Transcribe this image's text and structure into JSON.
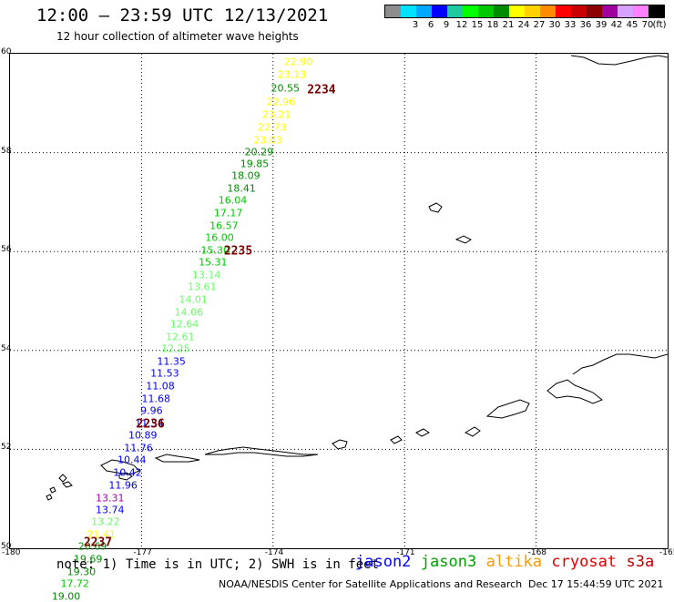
{
  "header": {
    "title": "12:00 – 23:59 UTC 12/13/2021",
    "subtitle": "12 hour collection of altimeter wave heights"
  },
  "legend": {
    "unit": "(ft)",
    "bins": [
      {
        "label": "",
        "color": "#8c8c8c"
      },
      {
        "label": "3",
        "color": "#00e0ff"
      },
      {
        "label": "6",
        "color": "#00a8ff"
      },
      {
        "label": "9",
        "color": "#0000ff"
      },
      {
        "label": "12",
        "color": "#1ec8a0"
      },
      {
        "label": "15",
        "color": "#00ff00"
      },
      {
        "label": "18",
        "color": "#00c800"
      },
      {
        "label": "21",
        "color": "#008c00"
      },
      {
        "label": "24",
        "color": "#ffff00"
      },
      {
        "label": "27",
        "color": "#ffd200"
      },
      {
        "label": "30",
        "color": "#ff8c00"
      },
      {
        "label": "33",
        "color": "#ff0000"
      },
      {
        "label": "36",
        "color": "#c80000"
      },
      {
        "label": "39",
        "color": "#8c0000"
      },
      {
        "label": "42",
        "color": "#a000a0"
      },
      {
        "label": "45",
        "color": "#d8a0ff"
      },
      {
        "label": "70",
        "color": "#ff80ff"
      },
      {
        "label": "",
        "color": "#000000"
      }
    ]
  },
  "map": {
    "lon_range": [
      -180,
      -165
    ],
    "lat_range": [
      50,
      60
    ],
    "lon_ticks": [
      "-180",
      "-177",
      "-174",
      "-171",
      "-168",
      "-165"
    ],
    "lat_ticks": [
      "60",
      "58",
      "56",
      "54",
      "52",
      "50"
    ],
    "lon_tick_values": [
      -180,
      -177,
      -174,
      -171,
      -168,
      -165
    ],
    "lat_tick_values": [
      60,
      58,
      56,
      54,
      52,
      50
    ],
    "time_labels": [
      {
        "text": "2234",
        "lon": -173.2,
        "lat": 59.25
      },
      {
        "text": "2235",
        "lon": -175.1,
        "lat": 55.98
      },
      {
        "text": "2236",
        "lon": -177.1,
        "lat": 52.48
      },
      {
        "text": "2237",
        "lon": -178.3,
        "lat": 50.1
      }
    ],
    "observations": [
      {
        "v": "22.90",
        "lon": -173.4,
        "lat": 59.82,
        "c": "#ffff00"
      },
      {
        "v": "23.13",
        "lon": -173.55,
        "lat": 59.55,
        "c": "#ffff00"
      },
      {
        "v": "20.55",
        "lon": -173.7,
        "lat": 59.28,
        "c": "#008c00"
      },
      {
        "v": "22.96",
        "lon": -173.8,
        "lat": 59.01,
        "c": "#ffff00"
      },
      {
        "v": "23.21",
        "lon": -173.9,
        "lat": 58.74,
        "c": "#ffff00"
      },
      {
        "v": "22.73",
        "lon": -174.0,
        "lat": 58.49,
        "c": "#ffff00"
      },
      {
        "v": "23.03",
        "lon": -174.1,
        "lat": 58.24,
        "c": "#ffff00"
      },
      {
        "v": "20.29",
        "lon": -174.3,
        "lat": 57.99,
        "c": "#008c00"
      },
      {
        "v": "19.85",
        "lon": -174.4,
        "lat": 57.76,
        "c": "#008c00"
      },
      {
        "v": "18.09",
        "lon": -174.6,
        "lat": 57.51,
        "c": "#008c00"
      },
      {
        "v": "18.41",
        "lon": -174.7,
        "lat": 57.26,
        "c": "#008c00"
      },
      {
        "v": "16.04",
        "lon": -174.9,
        "lat": 57.01,
        "c": "#00c800"
      },
      {
        "v": "17.17",
        "lon": -175.0,
        "lat": 56.76,
        "c": "#00c800"
      },
      {
        "v": "16.57",
        "lon": -175.1,
        "lat": 56.51,
        "c": "#00c800"
      },
      {
        "v": "16.00",
        "lon": -175.2,
        "lat": 56.26,
        "c": "#00c800"
      },
      {
        "v": "15.30",
        "lon": -175.3,
        "lat": 56.01,
        "c": "#00c800"
      },
      {
        "v": "15.31",
        "lon": -175.35,
        "lat": 55.76,
        "c": "#00c800"
      },
      {
        "v": "13.14",
        "lon": -175.5,
        "lat": 55.51,
        "c": "#66ff66"
      },
      {
        "v": "13.61",
        "lon": -175.6,
        "lat": 55.26,
        "c": "#66ff66"
      },
      {
        "v": "14.01",
        "lon": -175.8,
        "lat": 55.01,
        "c": "#66ff66"
      },
      {
        "v": "14.06",
        "lon": -175.9,
        "lat": 54.76,
        "c": "#66ff66"
      },
      {
        "v": "12.64",
        "lon": -176.0,
        "lat": 54.51,
        "c": "#66ff66"
      },
      {
        "v": "12.61",
        "lon": -176.1,
        "lat": 54.26,
        "c": "#66ff66"
      },
      {
        "v": "12.25",
        "lon": -176.2,
        "lat": 54.01,
        "c": "#66ff66"
      },
      {
        "v": "11.35",
        "lon": -176.3,
        "lat": 53.76,
        "c": "#0000ff"
      },
      {
        "v": "11.53",
        "lon": -176.45,
        "lat": 53.51,
        "c": "#0000ff"
      },
      {
        "v": "11.08",
        "lon": -176.55,
        "lat": 53.26,
        "c": "#0000ff"
      },
      {
        "v": "11.68",
        "lon": -176.65,
        "lat": 53.01,
        "c": "#0000ff"
      },
      {
        "v": "9.96",
        "lon": -176.75,
        "lat": 52.76,
        "c": "#0000ff"
      },
      {
        "v": "11.54",
        "lon": -176.8,
        "lat": 52.51,
        "c": "#0000ff"
      },
      {
        "v": "10.89",
        "lon": -176.95,
        "lat": 52.26,
        "c": "#0000ff"
      },
      {
        "v": "11.76",
        "lon": -177.05,
        "lat": 52.01,
        "c": "#0000ff"
      },
      {
        "v": "10.44",
        "lon": -177.2,
        "lat": 51.76,
        "c": "#0000ff"
      },
      {
        "v": "10.42",
        "lon": -177.3,
        "lat": 51.51,
        "c": "#0000ff"
      },
      {
        "v": "11.96",
        "lon": -177.4,
        "lat": 51.26,
        "c": "#0000ff"
      },
      {
        "v": "13.31",
        "lon": -177.7,
        "lat": 51.0,
        "c": "#a000a0"
      },
      {
        "v": "13.74",
        "lon": -177.7,
        "lat": 50.76,
        "c": "#0000ff"
      },
      {
        "v": "13.22",
        "lon": -177.8,
        "lat": 50.51,
        "c": "#66ff66"
      },
      {
        "v": "21.41",
        "lon": -177.9,
        "lat": 50.26,
        "c": "#ffff00"
      },
      {
        "v": "20.69",
        "lon": -178.1,
        "lat": 50.01,
        "c": "#008c00"
      },
      {
        "v": "19.69",
        "lon": -178.2,
        "lat": 49.76,
        "c": "#008c00"
      },
      {
        "v": "19.30",
        "lon": -178.35,
        "lat": 49.51,
        "c": "#008c00"
      },
      {
        "v": "17.72",
        "lon": -178.5,
        "lat": 49.26,
        "c": "#00c800"
      },
      {
        "v": "19.00",
        "lon": -178.7,
        "lat": 49.01,
        "c": "#008c00"
      }
    ]
  },
  "footer": {
    "note": "note: 1) Time is in UTC; 2) SWH is in feet",
    "satellites": [
      {
        "name": "jason2",
        "color": "#0000ff"
      },
      {
        "name": "jason3",
        "color": "#00a000"
      },
      {
        "name": "altika",
        "color": "#ff9900"
      },
      {
        "name": "cryosat",
        "color": "#e00000"
      },
      {
        "name": "s3a",
        "color": "#c00000"
      }
    ],
    "credit": "NOAA/NESDIS Center for Satellite Applications and Research",
    "timestamp": "Dec 17 15:44:59 UTC 2021"
  }
}
